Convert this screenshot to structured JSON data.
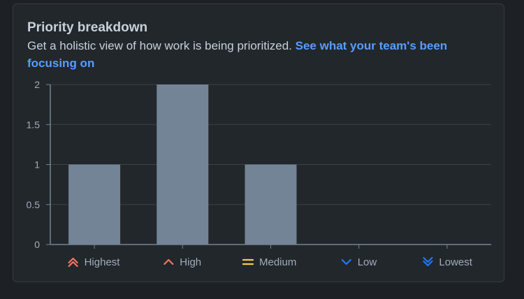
{
  "card": {
    "title": "Priority breakdown",
    "description": "Get a holistic view of how work is being prioritized.",
    "link_text": "See what your team's been focusing on"
  },
  "chart_data": {
    "type": "bar",
    "categories": [
      "Highest",
      "High",
      "Medium",
      "Low",
      "Lowest"
    ],
    "values": [
      1,
      2,
      1,
      0,
      0
    ],
    "ylim": [
      0,
      2
    ],
    "yticks": [
      0,
      0.5,
      1,
      1.5,
      2
    ],
    "ytick_labels": [
      "0",
      "0.5",
      "1",
      "1.5",
      "2"
    ],
    "grid": true,
    "legend_position": "bottom",
    "bar_color": "#738496",
    "priority_icons": [
      {
        "name": "highest-priority-icon",
        "color": "#f87462"
      },
      {
        "name": "high-priority-icon",
        "color": "#f87462"
      },
      {
        "name": "medium-priority-icon",
        "color": "#f5cd47"
      },
      {
        "name": "low-priority-icon",
        "color": "#1d7afc"
      },
      {
        "name": "lowest-priority-icon",
        "color": "#1d7afc"
      }
    ]
  }
}
